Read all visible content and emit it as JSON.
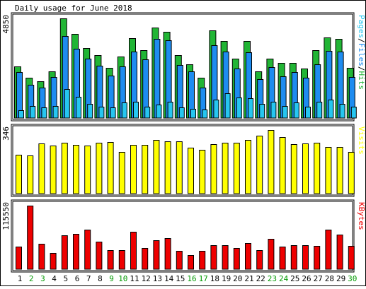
{
  "chart_data": {
    "type": "bar",
    "title": "Daily usage for June 2018",
    "days": [
      "1",
      "2",
      "3",
      "4",
      "5",
      "6",
      "7",
      "8",
      "9",
      "10",
      "11",
      "12",
      "13",
      "14",
      "15",
      "16",
      "17",
      "18",
      "19",
      "20",
      "21",
      "22",
      "23",
      "24",
      "25",
      "26",
      "27",
      "28",
      "29",
      "30"
    ],
    "weekend_days": [
      "2",
      "3",
      "9",
      "10",
      "16",
      "17",
      "23",
      "24",
      "30"
    ],
    "colors": {
      "hits": "#21b535",
      "files": "#1e8cf0",
      "pages": "#26c6f0",
      "visits": "#ffff00",
      "kbytes": "#ee0000",
      "weekday_label": "#000000",
      "weekend_label": "#009900",
      "frame": "#000000",
      "panel_bg": "#ffffff"
    },
    "panels": [
      {
        "id": "usage",
        "side_label": [
          {
            "text": "Pages",
            "color": "#26c6f0"
          },
          {
            "text": "/",
            "color": "#000000"
          },
          {
            "text": "Files",
            "color": "#1e8cf0"
          },
          {
            "text": "/",
            "color": "#000000"
          },
          {
            "text": "Hits",
            "color": "#21b535"
          }
        ],
        "ymax_label": "4850",
        "ymax": 4850,
        "series": [
          {
            "name": "Hits",
            "color": "#21b535",
            "values": [
              2520,
              1950,
              1800,
              2280,
              4850,
              4100,
              3400,
              3070,
              2450,
              3000,
              3900,
              3300,
              4420,
              4200,
              3050,
              2620,
              1960,
              4270,
              3740,
              2880,
              3750,
              2260,
              2880,
              2690,
              2680,
              2400,
              3300,
              3930,
              3840,
              2440
            ]
          },
          {
            "name": "Files",
            "color": "#1e8cf0",
            "values": [
              2240,
              1620,
              1480,
              1990,
              4000,
              3380,
              2880,
              2550,
              2070,
              2500,
              3240,
              2860,
              3840,
              3780,
              2580,
              2260,
              1490,
              3560,
              3220,
              2410,
              3200,
              1890,
              2480,
              2020,
              2230,
              1970,
              2610,
              3270,
              3220,
              1990
            ]
          },
          {
            "name": "Pages",
            "color": "#26c6f0",
            "values": [
              380,
              600,
              530,
              580,
              1420,
              1040,
              680,
              560,
              520,
              750,
              780,
              560,
              670,
              780,
              500,
              460,
              410,
              910,
              1210,
              1000,
              970,
              700,
              780,
              570,
              740,
              540,
              800,
              900,
              700,
              540
            ]
          }
        ]
      },
      {
        "id": "visits",
        "side_label": [
          {
            "text": "Visits",
            "color": "#ffff00"
          }
        ],
        "ymax_label": "346",
        "ymax": 346,
        "series": [
          {
            "name": "Visits",
            "color": "#ffff00",
            "values": [
              212,
              206,
              274,
              260,
              275,
              266,
              260,
              276,
              280,
              226,
              264,
              264,
              293,
              286,
              285,
              250,
              240,
              270,
              278,
              276,
              293,
              316,
              346,
              308,
              270,
              272,
              276,
              254,
              254,
              228
            ]
          }
        ]
      },
      {
        "id": "kbytes",
        "side_label": [
          {
            "text": "KBytes",
            "color": "#ee0000"
          }
        ],
        "ymax_label": "115550",
        "ymax": 115550,
        "series": [
          {
            "name": "KBytes",
            "color": "#ee0000",
            "values": [
              41300,
              115550,
              45840,
              29900,
              62220,
              63900,
              72300,
              49500,
              34200,
              35000,
              67700,
              38900,
              53200,
              56700,
              34000,
              25200,
              33500,
              43900,
              43700,
              38700,
              47200,
              34100,
              55400,
              41300,
              43200,
              43300,
              41800,
              71300,
              63100,
              42900
            ]
          }
        ]
      }
    ]
  }
}
